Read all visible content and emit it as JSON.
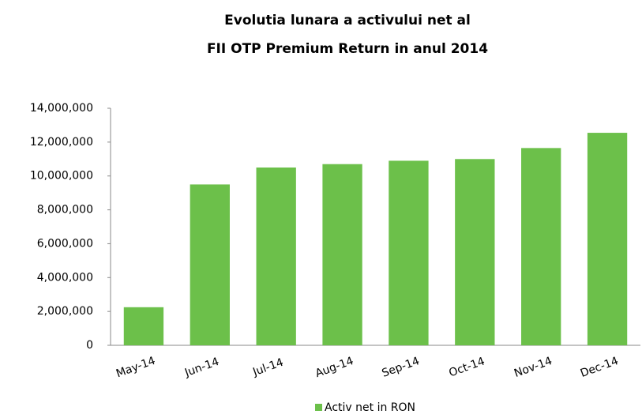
{
  "chart_data": {
    "type": "bar",
    "title": [
      "Evolutia lunara a activului net al",
      "FII OTP Premium Return in anul 2014"
    ],
    "categories": [
      "May-14",
      "Jun-14",
      "Jul-14",
      "Aug-14",
      "Sep-14",
      "Oct-14",
      "Nov-14",
      "Dec-14"
    ],
    "series": [
      {
        "name": "Activ net in RON",
        "color": "#6cc04a",
        "values": [
          2250000,
          9500000,
          10500000,
          10700000,
          10900000,
          11000000,
          11650000,
          12550000
        ]
      }
    ],
    "ylim": [
      0,
      14000000
    ],
    "yticks": [
      0,
      {
        "value": 2000000,
        "label": "2,000,000"
      },
      {
        "value": 4000000,
        "label": "4,000,000"
      },
      {
        "value": 6000000,
        "label": "6,000,000"
      },
      {
        "value": 8000000,
        "label": "8,000,000"
      },
      {
        "value": 10000000,
        "label": "10,000,000"
      },
      {
        "value": 12000000,
        "label": "12,000,000"
      },
      {
        "value": 14000000,
        "label": "14,000,000"
      }
    ],
    "grid": false,
    "legend": "bottom"
  }
}
